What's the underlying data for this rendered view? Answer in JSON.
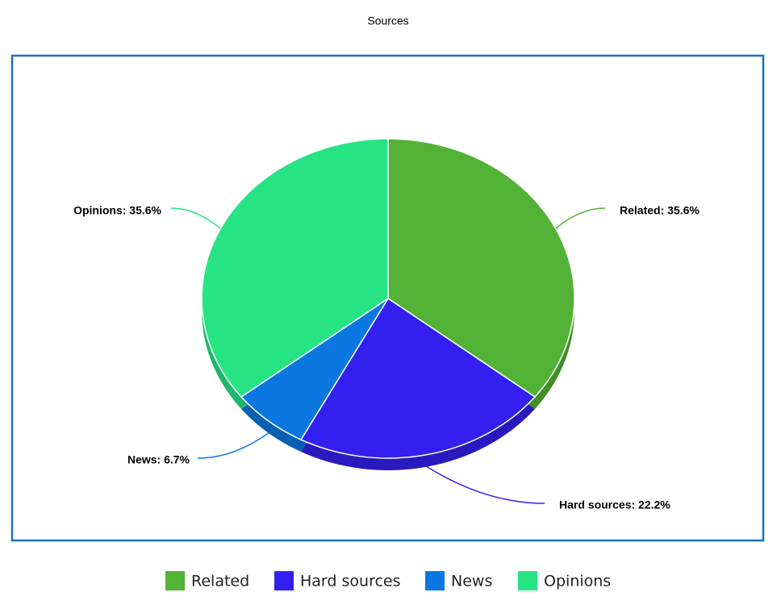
{
  "chart_data": {
    "type": "pie",
    "title": "Sources",
    "categories": [
      "Related",
      "Hard sources",
      "News",
      "Opinions"
    ],
    "values": [
      35.6,
      22.2,
      6.7,
      35.6
    ],
    "value_labels": [
      "Related: 35.6%",
      "Hard sources: 22.2%",
      "News: 6.7%",
      "Opinions: 35.6%"
    ],
    "colors": [
      "#52b236",
      "#3320ee",
      "#0a78e0",
      "#26e384"
    ],
    "legend": "bottom"
  }
}
